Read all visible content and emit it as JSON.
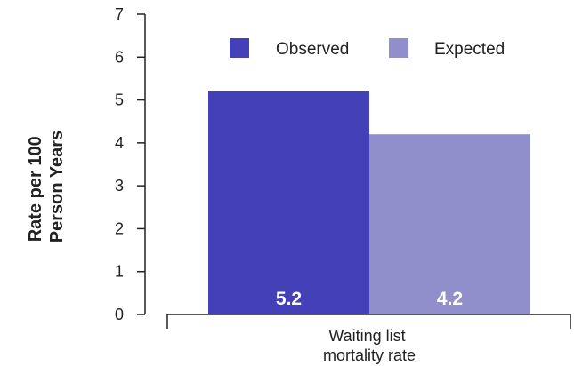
{
  "chart_data": {
    "type": "bar",
    "categories": [
      "Waiting list mortality rate"
    ],
    "category_label_lines": [
      "Waiting list",
      "mortality rate"
    ],
    "series": [
      {
        "name": "Observed",
        "values": [
          5.2
        ],
        "color": "#4340b8",
        "label": "5.2"
      },
      {
        "name": "Expected",
        "values": [
          4.2
        ],
        "color": "#908ecb",
        "label": "4.2"
      }
    ],
    "ylabel_lines": [
      "Rate per 100",
      "Person Years"
    ],
    "ylim": [
      0,
      7
    ],
    "yticks": [
      "0",
      "1",
      "2",
      "3",
      "4",
      "5",
      "6",
      "7"
    ],
    "grid": false,
    "legend_position": "top"
  }
}
